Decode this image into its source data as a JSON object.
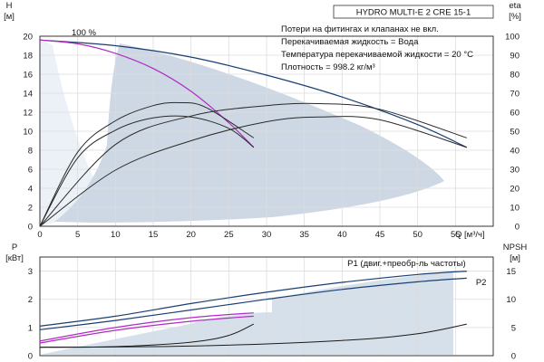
{
  "title": "HYDRO MULTI-E 2 CRE 15-1",
  "notes": [
    "Потери на фитингах и клапанах не вкл.",
    "Перекачиваемая жидкость = Вода",
    "Температура перекачиваемой жидкости = 20 °C",
    "Плотность = 998.2 кг/м³"
  ],
  "chart_data": [
    {
      "type": "line",
      "panel": "top",
      "xlabel": "Q [м³/ч]",
      "xlim": [
        0,
        60
      ],
      "xticks": [
        0,
        5,
        10,
        15,
        20,
        25,
        30,
        35,
        40,
        45,
        50,
        55
      ],
      "ylabel_left": "H [м]",
      "ylim_left": [
        0,
        20
      ],
      "yticks_left": [
        0,
        2,
        4,
        6,
        8,
        10,
        12,
        14,
        16,
        18,
        20
      ],
      "ylabel_right": "eta [%]",
      "ylim_right": [
        0,
        100
      ],
      "yticks_right": [
        0,
        10,
        20,
        30,
        40,
        50,
        60,
        70,
        80,
        90,
        100
      ],
      "grid": true,
      "annotations": [
        {
          "text": "100 %",
          "x": 4.2,
          "y": 20.1
        }
      ],
      "series": [
        {
          "axis": "left",
          "color": "#1a3f73",
          "x": [
            0,
            10,
            20,
            30,
            40,
            50,
            56.5
          ],
          "y": [
            19.6,
            19.0,
            17.8,
            15.9,
            13.6,
            10.7,
            8.3
          ]
        },
        {
          "axis": "left",
          "color": "#b02cc4",
          "x": [
            0,
            5,
            10,
            15,
            20,
            25,
            28.3
          ],
          "y": [
            19.6,
            19.2,
            18.2,
            16.6,
            14.2,
            10.9,
            8.3
          ]
        },
        {
          "axis": "left",
          "color": "#2a2a2a",
          "x": [
            0,
            5,
            10,
            15,
            20,
            25,
            28.3
          ],
          "y": [
            0,
            7.2,
            10.1,
            11.4,
            11.5,
            10.3,
            8.3
          ]
        },
        {
          "axis": "left",
          "color": "#2a2a2a",
          "x": [
            0,
            5,
            10,
            15,
            18.5,
            22,
            28.3
          ],
          "y": [
            0,
            7.8,
            11.1,
            12.7,
            13.0,
            12.5,
            9.3
          ]
        },
        {
          "axis": "left",
          "color": "#2a2a2a",
          "x": [
            0,
            10,
            20,
            30,
            37,
            45,
            56.5
          ],
          "y": [
            0,
            8.6,
            11.6,
            12.7,
            12.9,
            12.3,
            9.3
          ]
        },
        {
          "axis": "left",
          "color": "#2a2a2a",
          "x": [
            0,
            10,
            20,
            30,
            37,
            45,
            56.5
          ],
          "y": [
            0,
            5.9,
            9.0,
            11.0,
            11.5,
            11.2,
            8.3
          ]
        }
      ]
    },
    {
      "type": "line",
      "panel": "bottom",
      "xlim": [
        0,
        60
      ],
      "ylabel_left": "P [кВт]",
      "ylim_left": [
        0,
        3.5
      ],
      "yticks_left": [
        0,
        1,
        2,
        3
      ],
      "ylabel_right": "NPSH [м]",
      "ylim_right": [
        0,
        17.5
      ],
      "yticks_right": [
        0,
        5,
        10,
        15
      ],
      "grid": true,
      "annotations": [
        {
          "text": "P1 (двиг.+преобр-ль частоты)",
          "x": 40.7,
          "y": 3.18
        },
        {
          "text": "P2",
          "x": 58.4,
          "y": 2.5
        }
      ],
      "series": [
        {
          "name": "P1 (двиг.+преобр-ль частоты)",
          "axis": "left",
          "color": "#1a3f73",
          "x": [
            0,
            10,
            20,
            30,
            40,
            50,
            56.5
          ],
          "y": [
            1.05,
            1.4,
            1.85,
            2.25,
            2.6,
            2.88,
            3.0
          ]
        },
        {
          "name": "P2",
          "axis": "left",
          "color": "#1a3f73",
          "x": [
            0,
            10,
            20,
            30,
            40,
            50,
            56.5
          ],
          "y": [
            0.92,
            1.25,
            1.62,
            2.0,
            2.35,
            2.62,
            2.75
          ]
        },
        {
          "axis": "left",
          "color": "#b02cc4",
          "x": [
            0,
            10,
            20,
            28.3
          ],
          "y": [
            0.52,
            1.0,
            1.35,
            1.52
          ]
        },
        {
          "axis": "left",
          "color": "#b02cc4",
          "x": [
            0,
            10,
            20,
            28.3
          ],
          "y": [
            0.45,
            0.9,
            1.22,
            1.4
          ]
        },
        {
          "axis": "right",
          "color": "#1a1a1a",
          "x": [
            0,
            10,
            20,
            25,
            28.3
          ],
          "y": [
            1.5,
            1.6,
            2.4,
            3.6,
            5.6
          ]
        },
        {
          "axis": "right",
          "color": "#1a1a1a",
          "x": [
            0,
            20,
            40,
            50,
            56.5
          ],
          "y": [
            1.5,
            1.7,
            2.7,
            3.9,
            5.6
          ]
        }
      ]
    }
  ]
}
